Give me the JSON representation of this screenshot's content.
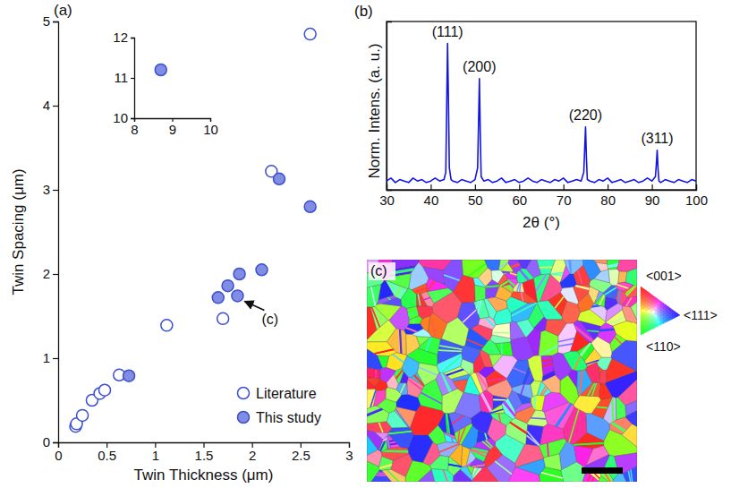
{
  "chart_data": [
    {
      "type": "scatter",
      "title": "(a)",
      "xlabel": "Twin Thickness (μm)",
      "ylabel": "Twin Spacing (μm)",
      "xlim": [
        0,
        3
      ],
      "ylim": [
        0,
        5
      ],
      "xticks": [
        0,
        0.5,
        1,
        1.5,
        2,
        2.5,
        3
      ],
      "yticks": [
        0,
        1,
        2,
        3,
        4,
        5
      ],
      "legend": "lower right",
      "series": [
        {
          "name": "Literature",
          "marker": "open",
          "color": "#3b4fd4",
          "x": [
            0.18,
            0.19,
            0.25,
            0.35,
            0.43,
            0.48,
            0.63,
            1.12,
            1.7,
            2.2,
            2.6
          ],
          "values": [
            0.19,
            0.22,
            0.32,
            0.5,
            0.58,
            0.62,
            0.8,
            1.39,
            1.47,
            3.22,
            4.85
          ]
        },
        {
          "name": "This study",
          "marker": "filled",
          "color": "#3b4fd4",
          "x": [
            0.73,
            1.65,
            1.75,
            1.85,
            1.87,
            2.1,
            2.28,
            2.6
          ],
          "values": [
            0.79,
            1.72,
            1.86,
            1.74,
            2.0,
            2.05,
            3.13,
            2.8
          ]
        }
      ],
      "annotations": [
        {
          "text": "(c)",
          "x": 1.85,
          "y": 1.74
        }
      ]
    },
    {
      "type": "scatter",
      "xlim": [
        8,
        10
      ],
      "ylim": [
        10,
        12
      ],
      "xticks": [
        8,
        9,
        10
      ],
      "yticks": [
        10,
        11,
        12
      ],
      "series": [
        {
          "marker": "filled",
          "color": "#3b4fd4",
          "x": [
            8.7
          ],
          "values": [
            11.2
          ]
        }
      ]
    },
    {
      "type": "line",
      "title": "(b)",
      "xlabel": "2θ (°)",
      "ylabel": "Norm. Intens. (a. u.)",
      "xlim": [
        30,
        100
      ],
      "ylim": [
        0,
        1.15
      ],
      "xticks": [
        30,
        40,
        50,
        60,
        70,
        80,
        90,
        100
      ],
      "yticks": [],
      "tick_labels": "x",
      "x": [
        30,
        31,
        32,
        33,
        34,
        35,
        36,
        37,
        38,
        39,
        40,
        41,
        42,
        43,
        43.4,
        43.6,
        43.8,
        44.0,
        44.2,
        44.6,
        45,
        46,
        47,
        48,
        49,
        50,
        50.6,
        50.8,
        51.0,
        51.2,
        51.4,
        52,
        53,
        54,
        55,
        56,
        57,
        58,
        59,
        60,
        61,
        62,
        63,
        64,
        65,
        66,
        67,
        68,
        69,
        70,
        71,
        72,
        73,
        74,
        74.6,
        74.8,
        75.0,
        75.2,
        75.4,
        76,
        77,
        78,
        79,
        80,
        81,
        82,
        83,
        84,
        85,
        86,
        87,
        88,
        89,
        90,
        90.8,
        91.0,
        91.2,
        91.4,
        91.6,
        92,
        93,
        94,
        95,
        96,
        97,
        98,
        99,
        100
      ],
      "series": [
        {
          "color": "#1414e6",
          "values": [
            0.06,
            0.08,
            0.05,
            0.07,
            0.06,
            0.05,
            0.08,
            0.06,
            0.07,
            0.05,
            0.06,
            0.08,
            0.06,
            0.07,
            0.12,
            0.55,
            1.0,
            0.62,
            0.15,
            0.07,
            0.06,
            0.05,
            0.07,
            0.06,
            0.05,
            0.07,
            0.15,
            0.45,
            0.76,
            0.38,
            0.09,
            0.06,
            0.07,
            0.05,
            0.06,
            0.08,
            0.05,
            0.06,
            0.07,
            0.05,
            0.06,
            0.08,
            0.06,
            0.05,
            0.07,
            0.06,
            0.05,
            0.07,
            0.06,
            0.08,
            0.05,
            0.06,
            0.07,
            0.06,
            0.12,
            0.27,
            0.43,
            0.22,
            0.07,
            0.06,
            0.05,
            0.07,
            0.06,
            0.08,
            0.05,
            0.06,
            0.07,
            0.05,
            0.06,
            0.07,
            0.05,
            0.06,
            0.08,
            0.06,
            0.09,
            0.17,
            0.27,
            0.14,
            0.06,
            0.05,
            0.07,
            0.06,
            0.05,
            0.07,
            0.06,
            0.05,
            0.07,
            0.06
          ]
        }
      ],
      "annotations": [
        {
          "text": "(111)",
          "x": 43.8,
          "y": 1.0
        },
        {
          "text": "(200)",
          "x": 51.0,
          "y": 0.76
        },
        {
          "text": "(220)",
          "x": 75.0,
          "y": 0.43
        },
        {
          "text": "(311)",
          "x": 91.2,
          "y": 0.27
        }
      ]
    },
    {
      "type": "image",
      "title": "(c)",
      "labels": [
        "<001>",
        "<111>",
        "<110>"
      ]
    }
  ]
}
